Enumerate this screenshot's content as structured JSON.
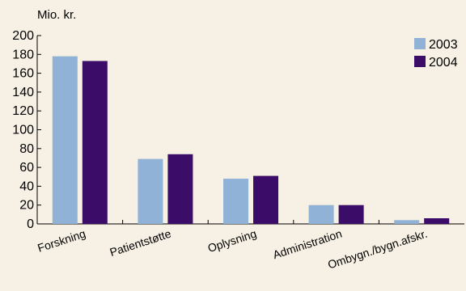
{
  "chart_data": {
    "type": "bar",
    "unit_label": "Mio. kr.",
    "categories": [
      "Forskning",
      "Patientstøtte",
      "Oplysning",
      "Administration",
      "Ombygn./bygn.afskr."
    ],
    "series": [
      {
        "name": "2003",
        "color": "#8fb2d6",
        "values": [
          178,
          69,
          48,
          20,
          4
        ]
      },
      {
        "name": "2004",
        "color": "#3b0d68",
        "values": [
          173,
          74,
          51,
          20,
          6
        ]
      }
    ],
    "yticks": [
      0,
      20,
      40,
      60,
      80,
      100,
      120,
      140,
      160,
      180,
      200
    ],
    "ylim": [
      0,
      200
    ],
    "grid": false,
    "legend_position": "top-right",
    "background": "#f6f1e4"
  }
}
